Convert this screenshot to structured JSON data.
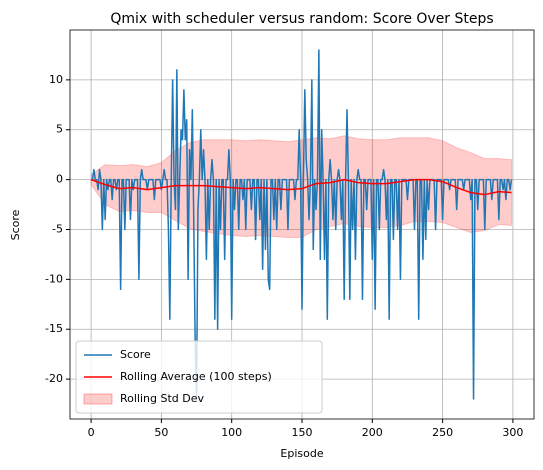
{
  "chart_data": {
    "type": "line",
    "title": "Qmix with scheduler versus random: Score Over Steps",
    "xlabel": "Episode",
    "ylabel": "Score",
    "xlim": [
      -15,
      315
    ],
    "ylim": [
      -24,
      15
    ],
    "xticks": [
      0,
      50,
      100,
      150,
      200,
      250,
      300
    ],
    "yticks": [
      -20,
      -15,
      -10,
      -5,
      0,
      5,
      10
    ],
    "grid": true,
    "legend": "lower left",
    "series": [
      {
        "name": "Score",
        "color": "#1f77b4",
        "x": [
          0,
          1,
          2,
          3,
          4,
          5,
          6,
          7,
          8,
          9,
          10,
          11,
          12,
          13,
          14,
          15,
          16,
          17,
          18,
          19,
          20,
          21,
          22,
          23,
          24,
          25,
          26,
          27,
          28,
          29,
          30,
          31,
          32,
          33,
          34,
          35,
          36,
          37,
          38,
          39,
          40,
          41,
          42,
          43,
          44,
          45,
          46,
          47,
          48,
          49,
          50,
          51,
          52,
          53,
          54,
          55,
          56,
          57,
          58,
          59,
          60,
          61,
          62,
          63,
          64,
          65,
          66,
          67,
          68,
          69,
          70,
          71,
          72,
          73,
          74,
          75,
          76,
          77,
          78,
          79,
          80,
          81,
          82,
          83,
          84,
          85,
          86,
          87,
          88,
          89,
          90,
          91,
          92,
          93,
          94,
          95,
          96,
          97,
          98,
          99,
          100,
          101,
          102,
          103,
          104,
          105,
          106,
          107,
          108,
          109,
          110,
          111,
          112,
          113,
          114,
          115,
          116,
          117,
          118,
          119,
          120,
          121,
          122,
          123,
          124,
          125,
          126,
          127,
          128,
          129,
          130,
          131,
          132,
          133,
          134,
          135,
          136,
          137,
          138,
          139,
          140,
          141,
          142,
          143,
          144,
          145,
          146,
          147,
          148,
          149,
          150,
          151,
          152,
          153,
          154,
          155,
          156,
          157,
          158,
          159,
          160,
          161,
          162,
          163,
          164,
          165,
          166,
          167,
          168,
          169,
          170,
          171,
          172,
          173,
          174,
          175,
          176,
          177,
          178,
          179,
          180,
          181,
          182,
          183,
          184,
          185,
          186,
          187,
          188,
          189,
          190,
          191,
          192,
          193,
          194,
          195,
          196,
          197,
          198,
          199,
          200,
          201,
          202,
          203,
          204,
          205,
          206,
          207,
          208,
          209,
          210,
          211,
          212,
          213,
          214,
          215,
          216,
          217,
          218,
          219,
          220,
          221,
          222,
          223,
          224,
          225,
          226,
          227,
          228,
          229,
          230,
          231,
          232,
          233,
          234,
          235,
          236,
          237,
          238,
          239,
          240,
          241,
          242,
          243,
          244,
          245,
          246,
          247,
          248,
          249,
          250,
          251,
          252,
          253,
          254,
          255,
          256,
          257,
          258,
          259,
          260,
          261,
          262,
          263,
          264,
          265,
          266,
          267,
          268,
          269,
          270,
          271,
          272,
          273,
          274,
          275,
          276,
          277,
          278,
          279,
          280,
          281,
          282,
          283,
          284,
          285,
          286,
          287,
          288,
          289,
          290,
          291,
          292,
          293,
          294,
          295,
          296,
          297,
          298,
          299
        ],
        "values": [
          0,
          0,
          1,
          0,
          0,
          -1,
          1,
          0,
          -5,
          0,
          -4,
          0,
          -1,
          0,
          0,
          -2,
          0,
          0,
          -1,
          0,
          0,
          -11,
          0,
          0,
          -5,
          0,
          0,
          0,
          -4,
          0,
          -1,
          0,
          0,
          0,
          -10,
          0,
          1,
          0,
          0,
          0,
          -1,
          0,
          0,
          0,
          0,
          -2,
          0,
          0,
          0,
          0,
          -1,
          0,
          1,
          0,
          0,
          -5,
          -14,
          0,
          10,
          0,
          -3,
          11,
          -5,
          0,
          5,
          4,
          9,
          4,
          6,
          -10,
          3,
          0,
          7,
          -4,
          -16,
          -22,
          -3,
          0,
          5,
          0,
          3,
          0,
          -8,
          0,
          -5,
          0,
          2,
          0,
          -14,
          0,
          -15,
          0,
          -5,
          0,
          0,
          -8,
          0,
          0,
          3,
          0,
          -14,
          0,
          -3,
          0,
          0,
          -5,
          0,
          0,
          -2,
          0,
          -5,
          0,
          0,
          0,
          -3,
          0,
          0,
          -6,
          0,
          0,
          -4,
          0,
          -9,
          0,
          -7,
          0,
          -10,
          -11,
          0,
          0,
          -4,
          0,
          -5,
          0,
          0,
          -3,
          0,
          0,
          0,
          0,
          -5,
          0,
          0,
          0,
          0,
          -2,
          0,
          0,
          5,
          0,
          -13,
          0,
          9,
          2,
          0,
          -4,
          0,
          10,
          -7,
          0,
          -3,
          0,
          13,
          -8,
          5,
          0,
          -8,
          0,
          -14,
          0,
          2,
          0,
          -4,
          0,
          -5,
          0,
          1,
          0,
          -4,
          0,
          -12,
          0,
          7,
          0,
          -12,
          0,
          -5,
          0,
          -8,
          0,
          1,
          0,
          0,
          -12,
          0,
          0,
          -3,
          0,
          0,
          0,
          -8,
          0,
          -13,
          0,
          0,
          -5,
          0,
          0,
          1,
          0,
          -4,
          0,
          -14,
          0,
          0,
          -6,
          0,
          0,
          -5,
          0,
          -10,
          0,
          0,
          0,
          0,
          -2,
          0,
          0,
          0,
          0,
          -5,
          0,
          0,
          -14,
          0,
          0,
          -8,
          0,
          -6,
          0,
          -3,
          0,
          0,
          0,
          0,
          -5,
          0,
          0,
          0,
          0,
          -4,
          0,
          0,
          0,
          0,
          -1,
          0,
          0,
          0,
          0,
          -3,
          0,
          0,
          0,
          0,
          -1,
          0,
          0,
          0,
          0,
          -2,
          0,
          -22,
          0,
          0,
          -3,
          0,
          0,
          0,
          0,
          -5,
          0,
          0,
          0,
          0,
          -2,
          0,
          0,
          0,
          0,
          -4,
          0,
          0,
          -1,
          0,
          -2,
          0,
          0,
          -1,
          0
        ]
      },
      {
        "name": "Rolling Average (100 steps)",
        "color": "#ff0000",
        "x": [
          0,
          10,
          20,
          30,
          40,
          50,
          60,
          70,
          80,
          90,
          100,
          110,
          120,
          130,
          140,
          150,
          160,
          170,
          180,
          190,
          200,
          210,
          220,
          230,
          240,
          250,
          260,
          270,
          280,
          290,
          299
        ],
        "values": [
          0,
          -0.5,
          -0.9,
          -0.8,
          -1.0,
          -0.8,
          -0.6,
          -0.6,
          -0.6,
          -0.7,
          -0.8,
          -0.9,
          -0.8,
          -0.9,
          -1.0,
          -0.9,
          -0.4,
          -0.3,
          0,
          -0.3,
          -0.4,
          -0.4,
          -0.2,
          0,
          0,
          -0.2,
          -0.8,
          -1.3,
          -1.5,
          -1.2,
          -1.3
        ]
      },
      {
        "name": "Rolling Std Dev",
        "color": "#ff0000",
        "x": [
          0,
          10,
          20,
          30,
          40,
          50,
          60,
          70,
          80,
          90,
          100,
          110,
          120,
          130,
          140,
          150,
          160,
          170,
          180,
          190,
          200,
          210,
          220,
          230,
          240,
          250,
          260,
          270,
          280,
          290,
          299
        ],
        "values": [
          0.5,
          2,
          2.3,
          2.3,
          2.3,
          2.5,
          3.5,
          4.3,
          4.6,
          4.7,
          4.8,
          4.8,
          4.8,
          4.8,
          4.8,
          4.9,
          4.6,
          4.4,
          4.4,
          4.4,
          4.4,
          4.4,
          4.4,
          4.2,
          4.2,
          4.1,
          4.0,
          4.0,
          3.6,
          3.3,
          3.3
        ]
      }
    ]
  }
}
